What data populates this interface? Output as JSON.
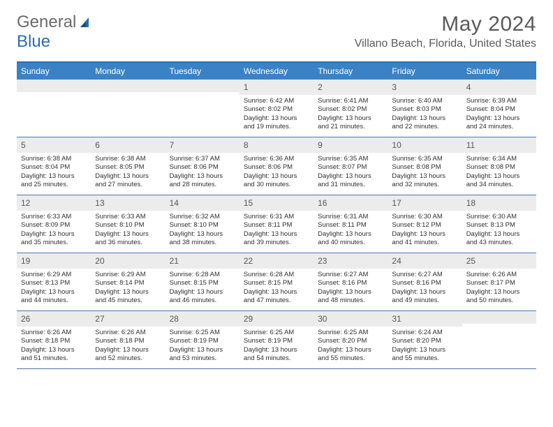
{
  "brand": {
    "part1": "General",
    "part2": "Blue"
  },
  "title": "May 2024",
  "location": "Villano Beach, Florida, United States",
  "headers": [
    "Sunday",
    "Monday",
    "Tuesday",
    "Wednesday",
    "Thursday",
    "Friday",
    "Saturday"
  ],
  "colors": {
    "header_bg": "#3b82c4",
    "header_text": "#ffffff",
    "border": "#4a78a8",
    "daynum_bg": "#ececec",
    "text": "#303030",
    "title": "#5a5a5a"
  },
  "layout": {
    "columns": 7,
    "rows": 5,
    "fontsize_body": 9.5,
    "fontsize_header": 12,
    "fontsize_title": 30,
    "fontsize_location": 16
  },
  "weeks": [
    [
      {
        "day": "",
        "lines": []
      },
      {
        "day": "",
        "lines": []
      },
      {
        "day": "",
        "lines": []
      },
      {
        "day": "1",
        "lines": [
          "Sunrise: 6:42 AM",
          "Sunset: 8:02 PM",
          "Daylight: 13 hours",
          "and 19 minutes."
        ]
      },
      {
        "day": "2",
        "lines": [
          "Sunrise: 6:41 AM",
          "Sunset: 8:02 PM",
          "Daylight: 13 hours",
          "and 21 minutes."
        ]
      },
      {
        "day": "3",
        "lines": [
          "Sunrise: 6:40 AM",
          "Sunset: 8:03 PM",
          "Daylight: 13 hours",
          "and 22 minutes."
        ]
      },
      {
        "day": "4",
        "lines": [
          "Sunrise: 6:39 AM",
          "Sunset: 8:04 PM",
          "Daylight: 13 hours",
          "and 24 minutes."
        ]
      }
    ],
    [
      {
        "day": "5",
        "lines": [
          "Sunrise: 6:38 AM",
          "Sunset: 8:04 PM",
          "Daylight: 13 hours",
          "and 25 minutes."
        ]
      },
      {
        "day": "6",
        "lines": [
          "Sunrise: 6:38 AM",
          "Sunset: 8:05 PM",
          "Daylight: 13 hours",
          "and 27 minutes."
        ]
      },
      {
        "day": "7",
        "lines": [
          "Sunrise: 6:37 AM",
          "Sunset: 8:06 PM",
          "Daylight: 13 hours",
          "and 28 minutes."
        ]
      },
      {
        "day": "8",
        "lines": [
          "Sunrise: 6:36 AM",
          "Sunset: 8:06 PM",
          "Daylight: 13 hours",
          "and 30 minutes."
        ]
      },
      {
        "day": "9",
        "lines": [
          "Sunrise: 6:35 AM",
          "Sunset: 8:07 PM",
          "Daylight: 13 hours",
          "and 31 minutes."
        ]
      },
      {
        "day": "10",
        "lines": [
          "Sunrise: 6:35 AM",
          "Sunset: 8:08 PM",
          "Daylight: 13 hours",
          "and 32 minutes."
        ]
      },
      {
        "day": "11",
        "lines": [
          "Sunrise: 6:34 AM",
          "Sunset: 8:08 PM",
          "Daylight: 13 hours",
          "and 34 minutes."
        ]
      }
    ],
    [
      {
        "day": "12",
        "lines": [
          "Sunrise: 6:33 AM",
          "Sunset: 8:09 PM",
          "Daylight: 13 hours",
          "and 35 minutes."
        ]
      },
      {
        "day": "13",
        "lines": [
          "Sunrise: 6:33 AM",
          "Sunset: 8:10 PM",
          "Daylight: 13 hours",
          "and 36 minutes."
        ]
      },
      {
        "day": "14",
        "lines": [
          "Sunrise: 6:32 AM",
          "Sunset: 8:10 PM",
          "Daylight: 13 hours",
          "and 38 minutes."
        ]
      },
      {
        "day": "15",
        "lines": [
          "Sunrise: 6:31 AM",
          "Sunset: 8:11 PM",
          "Daylight: 13 hours",
          "and 39 minutes."
        ]
      },
      {
        "day": "16",
        "lines": [
          "Sunrise: 6:31 AM",
          "Sunset: 8:11 PM",
          "Daylight: 13 hours",
          "and 40 minutes."
        ]
      },
      {
        "day": "17",
        "lines": [
          "Sunrise: 6:30 AM",
          "Sunset: 8:12 PM",
          "Daylight: 13 hours",
          "and 41 minutes."
        ]
      },
      {
        "day": "18",
        "lines": [
          "Sunrise: 6:30 AM",
          "Sunset: 8:13 PM",
          "Daylight: 13 hours",
          "and 43 minutes."
        ]
      }
    ],
    [
      {
        "day": "19",
        "lines": [
          "Sunrise: 6:29 AM",
          "Sunset: 8:13 PM",
          "Daylight: 13 hours",
          "and 44 minutes."
        ]
      },
      {
        "day": "20",
        "lines": [
          "Sunrise: 6:29 AM",
          "Sunset: 8:14 PM",
          "Daylight: 13 hours",
          "and 45 minutes."
        ]
      },
      {
        "day": "21",
        "lines": [
          "Sunrise: 6:28 AM",
          "Sunset: 8:15 PM",
          "Daylight: 13 hours",
          "and 46 minutes."
        ]
      },
      {
        "day": "22",
        "lines": [
          "Sunrise: 6:28 AM",
          "Sunset: 8:15 PM",
          "Daylight: 13 hours",
          "and 47 minutes."
        ]
      },
      {
        "day": "23",
        "lines": [
          "Sunrise: 6:27 AM",
          "Sunset: 8:16 PM",
          "Daylight: 13 hours",
          "and 48 minutes."
        ]
      },
      {
        "day": "24",
        "lines": [
          "Sunrise: 6:27 AM",
          "Sunset: 8:16 PM",
          "Daylight: 13 hours",
          "and 49 minutes."
        ]
      },
      {
        "day": "25",
        "lines": [
          "Sunrise: 6:26 AM",
          "Sunset: 8:17 PM",
          "Daylight: 13 hours",
          "and 50 minutes."
        ]
      }
    ],
    [
      {
        "day": "26",
        "lines": [
          "Sunrise: 6:26 AM",
          "Sunset: 8:18 PM",
          "Daylight: 13 hours",
          "and 51 minutes."
        ]
      },
      {
        "day": "27",
        "lines": [
          "Sunrise: 6:26 AM",
          "Sunset: 8:18 PM",
          "Daylight: 13 hours",
          "and 52 minutes."
        ]
      },
      {
        "day": "28",
        "lines": [
          "Sunrise: 6:25 AM",
          "Sunset: 8:19 PM",
          "Daylight: 13 hours",
          "and 53 minutes."
        ]
      },
      {
        "day": "29",
        "lines": [
          "Sunrise: 6:25 AM",
          "Sunset: 8:19 PM",
          "Daylight: 13 hours",
          "and 54 minutes."
        ]
      },
      {
        "day": "30",
        "lines": [
          "Sunrise: 6:25 AM",
          "Sunset: 8:20 PM",
          "Daylight: 13 hours",
          "and 55 minutes."
        ]
      },
      {
        "day": "31",
        "lines": [
          "Sunrise: 6:24 AM",
          "Sunset: 8:20 PM",
          "Daylight: 13 hours",
          "and 55 minutes."
        ]
      },
      {
        "day": "",
        "lines": []
      }
    ]
  ]
}
